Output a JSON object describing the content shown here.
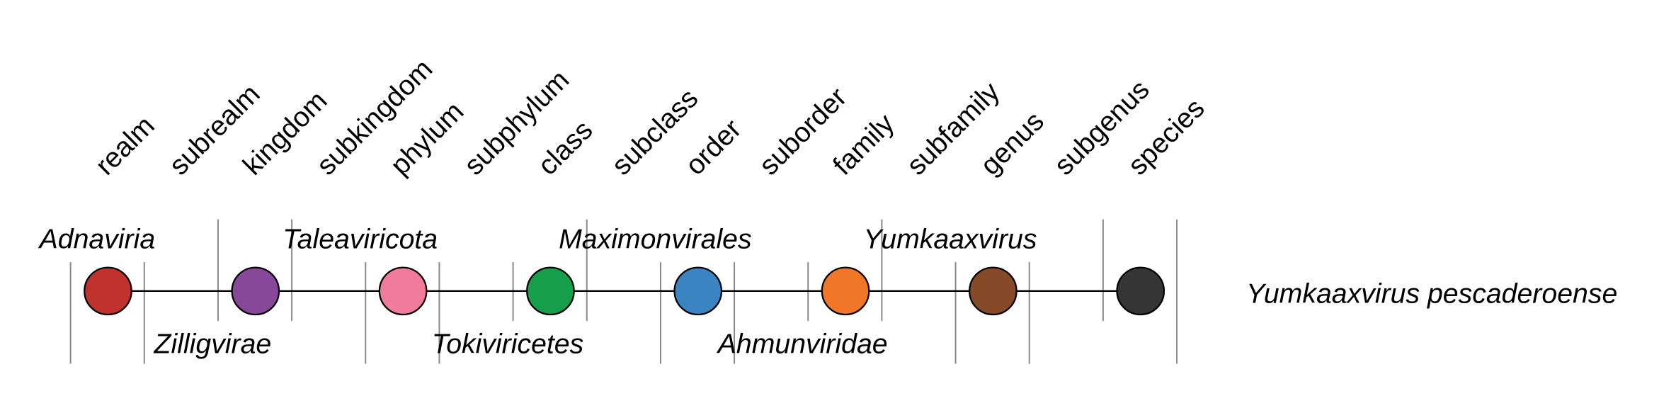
{
  "ranks": [
    "realm",
    "subrealm",
    "kingdom",
    "subkingdom",
    "phylum",
    "subphylum",
    "class",
    "subclass",
    "order",
    "suborder",
    "family",
    "subfamily",
    "genus",
    "subgenus",
    "species"
  ],
  "taxa": [
    {
      "name": "Adnaviria",
      "rank": "realm",
      "color": "#c0322e",
      "position": "top"
    },
    {
      "name": "Zilligvirae",
      "rank": "kingdom",
      "color": "#88489a",
      "position": "bottom"
    },
    {
      "name": "Taleaviricota",
      "rank": "phylum",
      "color": "#f07b9b",
      "position": "top"
    },
    {
      "name": "Tokiviricetes",
      "rank": "class",
      "color": "#169e4a",
      "position": "bottom"
    },
    {
      "name": "Maximonvirales",
      "rank": "order",
      "color": "#3b84c2",
      "position": "top"
    },
    {
      "name": "Ahmunviridae",
      "rank": "family",
      "color": "#f07628",
      "position": "bottom"
    },
    {
      "name": "Yumkaaxvirus",
      "rank": "genus",
      "color": "#874a28",
      "position": "top"
    },
    {
      "name": "Yumkaaxvirus pescaderoense",
      "rank": "species",
      "color": "#353535",
      "position": "right"
    }
  ]
}
